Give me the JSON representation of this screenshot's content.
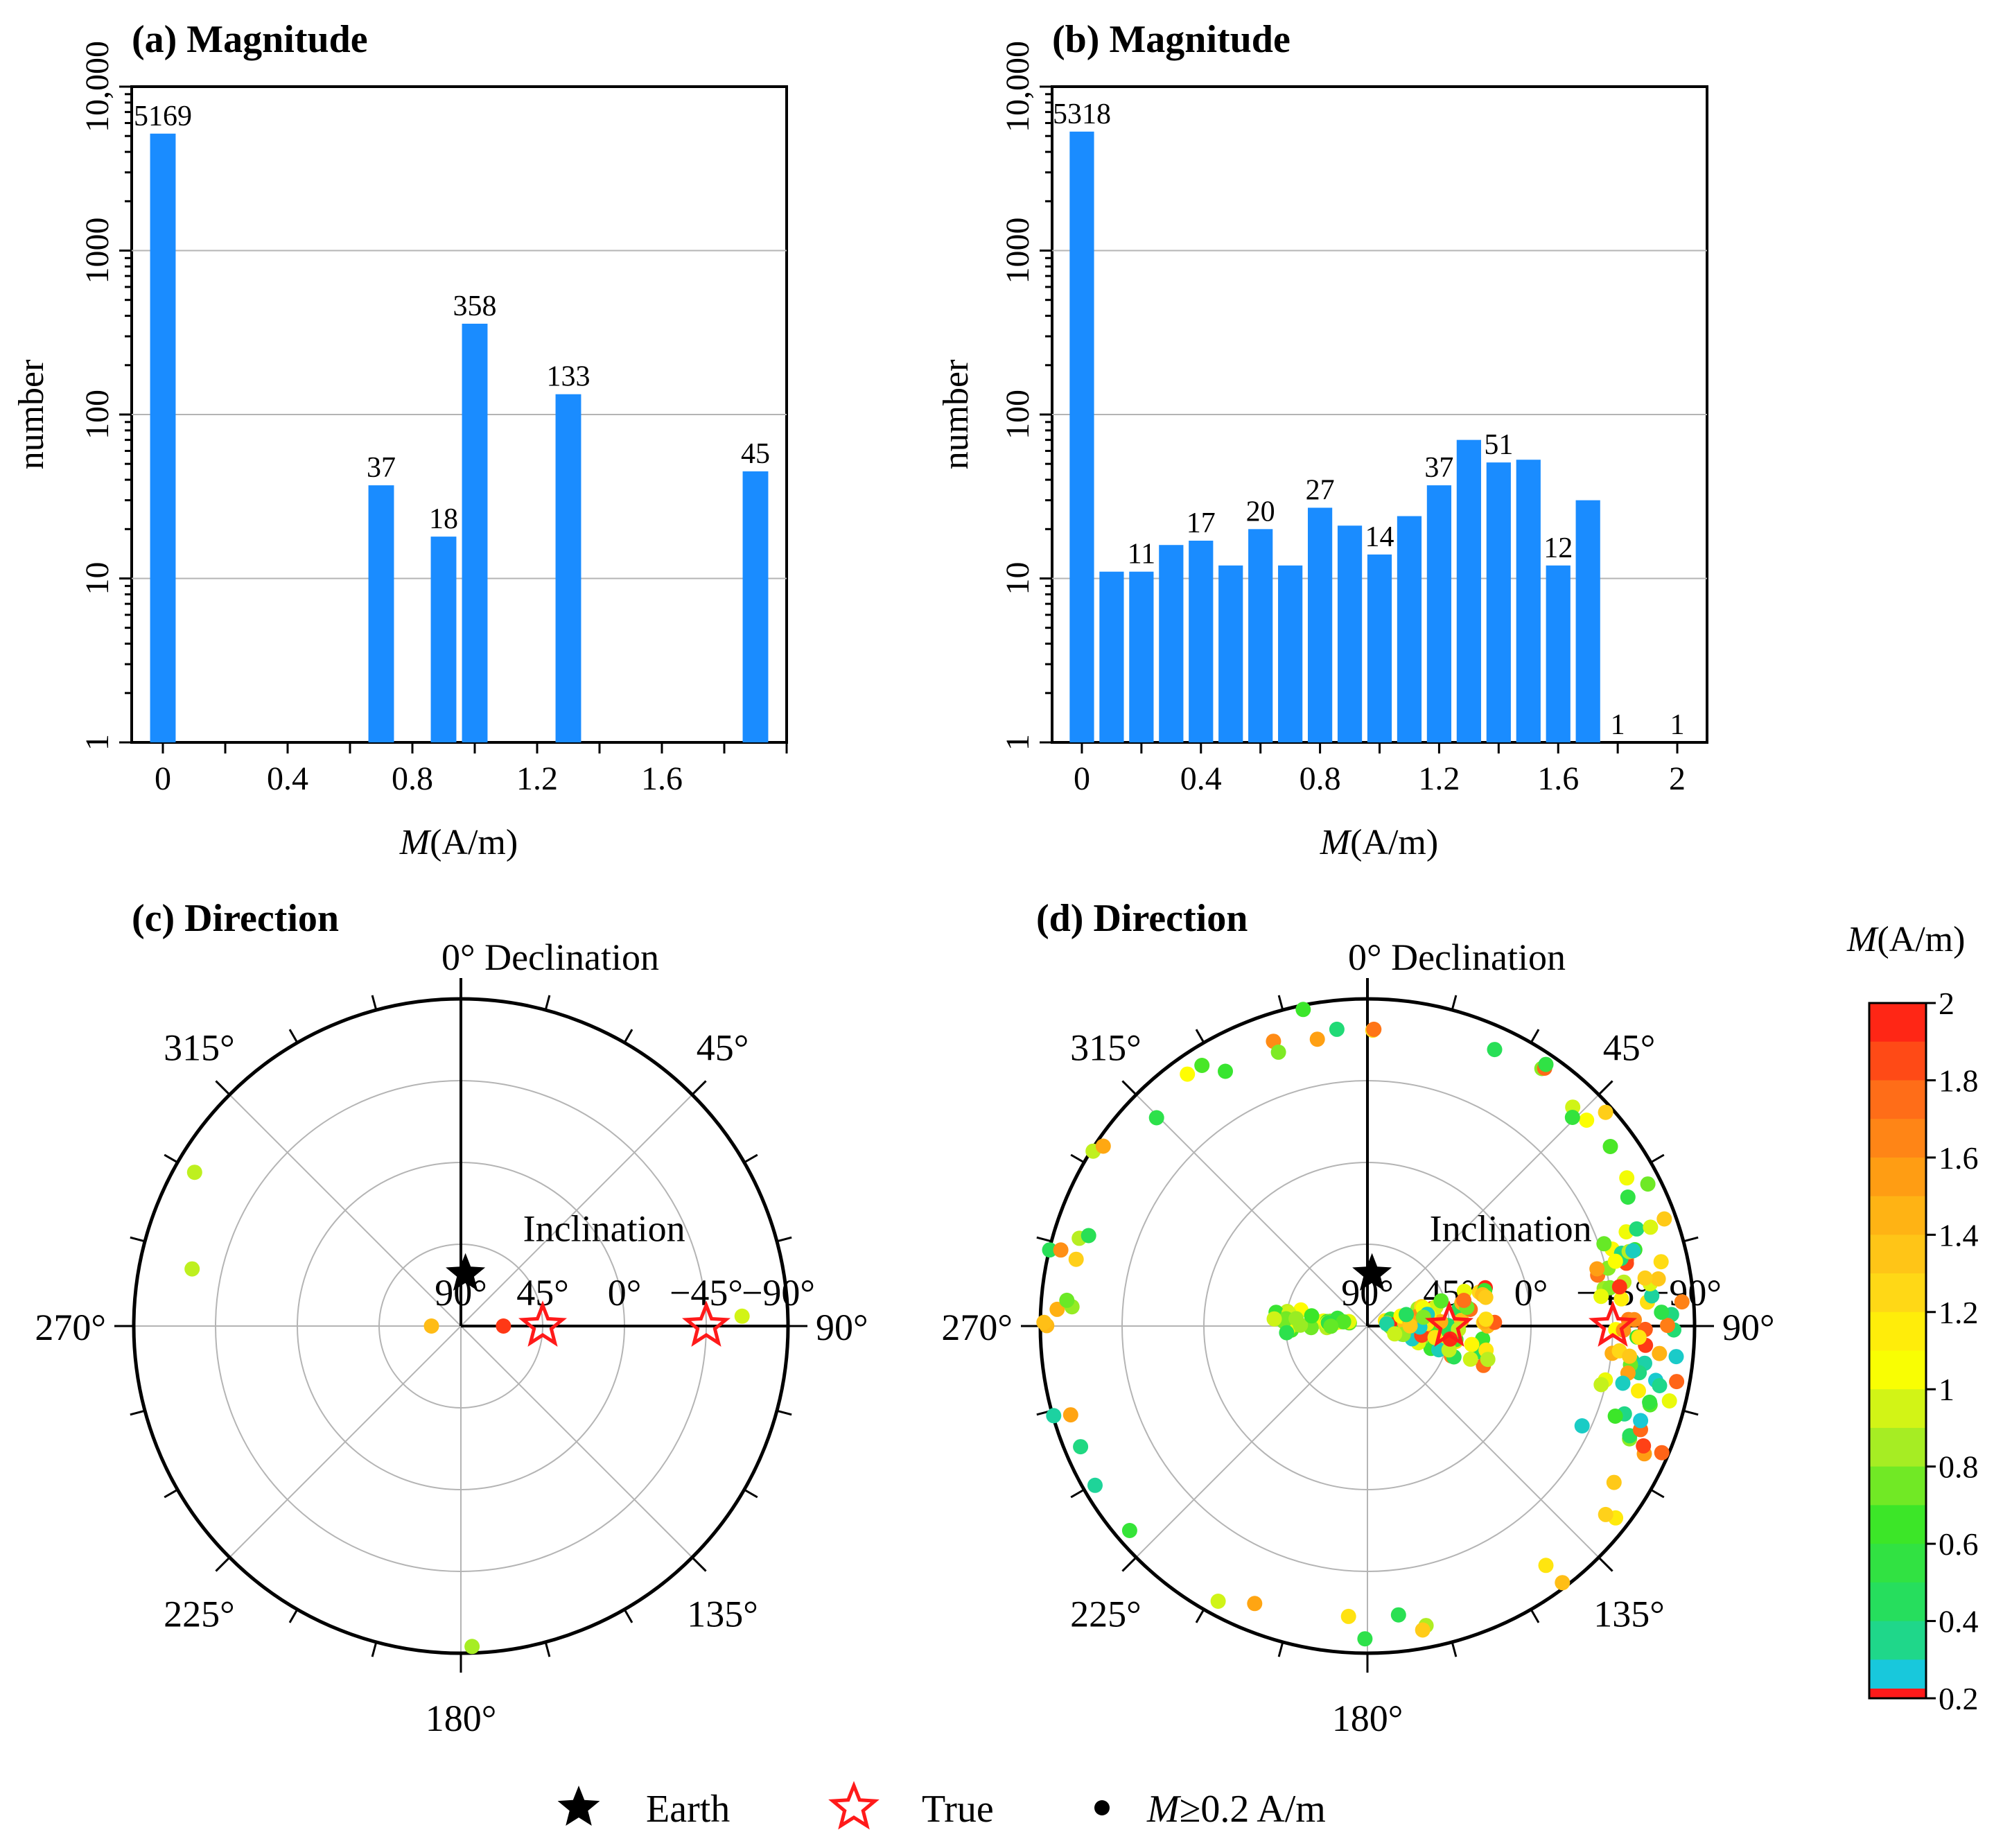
{
  "chart_data": [
    {
      "panel": "a",
      "type": "bar",
      "title": "(a) Magnitude",
      "ylabel": "number",
      "xlabel": "M(A/m)",
      "yscale": "log",
      "ylim": [
        1,
        10000
      ],
      "yticks": [
        "1",
        "10",
        "100",
        "1000",
        "10,000"
      ],
      "xlim": [
        -0.1,
        2.0
      ],
      "xticks": [
        "0",
        "0.4",
        "0.8",
        "1.2",
        "1.6"
      ],
      "bars": [
        {
          "x": 0.0,
          "value": 5169,
          "label": "5169"
        },
        {
          "x": 0.7,
          "value": 37,
          "label": "37"
        },
        {
          "x": 0.9,
          "value": 18,
          "label": "18"
        },
        {
          "x": 1.0,
          "value": 358,
          "label": "358"
        },
        {
          "x": 1.3,
          "value": 133,
          "label": "133"
        },
        {
          "x": 1.9,
          "value": 45,
          "label": "45"
        }
      ]
    },
    {
      "panel": "b",
      "type": "bar",
      "title": "(b) Magnitude",
      "ylabel": "number",
      "xlabel": "M(A/m)",
      "yscale": "log",
      "ylim": [
        1,
        10000
      ],
      "yticks": [
        "1",
        "10",
        "100",
        "1000",
        "10,000"
      ],
      "xlim": [
        -0.1,
        2.1
      ],
      "xticks": [
        "0",
        "0.4",
        "0.8",
        "1.2",
        "1.6",
        "2"
      ],
      "bars": [
        {
          "x": 0.0,
          "value": 5318,
          "label": "5318"
        },
        {
          "x": 0.1,
          "value": 11,
          "label": ""
        },
        {
          "x": 0.2,
          "value": 11,
          "label": "11"
        },
        {
          "x": 0.3,
          "value": 16,
          "label": ""
        },
        {
          "x": 0.4,
          "value": 17,
          "label": "17"
        },
        {
          "x": 0.5,
          "value": 12,
          "label": ""
        },
        {
          "x": 0.6,
          "value": 20,
          "label": "20"
        },
        {
          "x": 0.7,
          "value": 12,
          "label": ""
        },
        {
          "x": 0.8,
          "value": 27,
          "label": "27"
        },
        {
          "x": 0.9,
          "value": 21,
          "label": ""
        },
        {
          "x": 1.0,
          "value": 14,
          "label": "14"
        },
        {
          "x": 1.1,
          "value": 24,
          "label": ""
        },
        {
          "x": 1.2,
          "value": 37,
          "label": "37"
        },
        {
          "x": 1.3,
          "value": 70,
          "label": ""
        },
        {
          "x": 1.4,
          "value": 51,
          "label": "51"
        },
        {
          "x": 1.5,
          "value": 53,
          "label": ""
        },
        {
          "x": 1.6,
          "value": 12,
          "label": "12"
        },
        {
          "x": 1.7,
          "value": 30,
          "label": ""
        },
        {
          "x": 1.8,
          "value": 1,
          "label": "1"
        },
        {
          "x": 2.0,
          "value": 1,
          "label": "1"
        }
      ]
    },
    {
      "panel": "c",
      "type": "scatter",
      "projection": "polar",
      "title": "(c) Direction",
      "declination_label": "0° Declination",
      "inclination_label": "Inclination",
      "angle_labels": {
        "0": "",
        "45": "45°",
        "90": "90°",
        "135": "135°",
        "180": "180°",
        "225": "225°",
        "270": "270°",
        "315": "315°"
      },
      "radial_labels": [
        "90°",
        "45°",
        "0°",
        "−45°",
        "−90°"
      ],
      "earth": {
        "declination": 5,
        "radius": 0.16
      },
      "true_markers": [
        {
          "declination": 90,
          "radius": 0.25
        },
        {
          "declination": 90,
          "radius": 0.75
        }
      ],
      "points": [
        {
          "declination": 300,
          "radius": 0.94,
          "M": 0.9
        },
        {
          "declination": 282,
          "radius": 0.84,
          "M": 0.9
        },
        {
          "declination": 270,
          "radius": 0.09,
          "M": 1.4
        },
        {
          "declination": 90,
          "radius": 0.13,
          "M": 1.9
        },
        {
          "declination": 88,
          "radius": 0.86,
          "M": 0.95
        },
        {
          "declination": 178,
          "radius": 0.98,
          "M": 0.85
        }
      ]
    },
    {
      "panel": "d",
      "type": "scatter",
      "projection": "polar",
      "title": "(d) Direction",
      "declination_label": "0° Declination",
      "inclination_label": "Inclination",
      "angle_labels": {
        "0": "",
        "45": "45°",
        "90": "90°",
        "135": "135°",
        "180": "180°",
        "225": "225°",
        "270": "270°",
        "315": "315°"
      },
      "radial_labels": [
        "90°",
        "45°",
        "0°",
        "−45°",
        "−90°"
      ],
      "earth": {
        "declination": 5,
        "radius": 0.16
      },
      "true_markers": [
        {
          "declination": 90,
          "radius": 0.25
        },
        {
          "declination": 90,
          "radius": 0.75
        }
      ],
      "points_note": "approximately 320 scattered direction points (declination/inclination) for M>=0.2 A/m, clustered near the two true directions",
      "points": []
    }
  ],
  "colorbar": {
    "title": "M(A/m)",
    "ticks": [
      "0.2",
      "0.4",
      "0.6",
      "0.8",
      "1",
      "1.2",
      "1.4",
      "1.6",
      "1.8",
      "2"
    ],
    "colors": [
      "#ff1a1a",
      "#18c8dc",
      "#22dd66",
      "#33e633",
      "#b8ee22",
      "#ffff00",
      "#ffd21a",
      "#ffaa12",
      "#ff8a18",
      "#ff5a18",
      "#ff1414"
    ]
  },
  "legend": {
    "earth": "Earth",
    "true": "True",
    "point": "M≥0.2 A/m"
  },
  "colors": {
    "bar": "#1a8cff",
    "grid": "#b4b4b4",
    "true_star": "#ff1a1a"
  }
}
